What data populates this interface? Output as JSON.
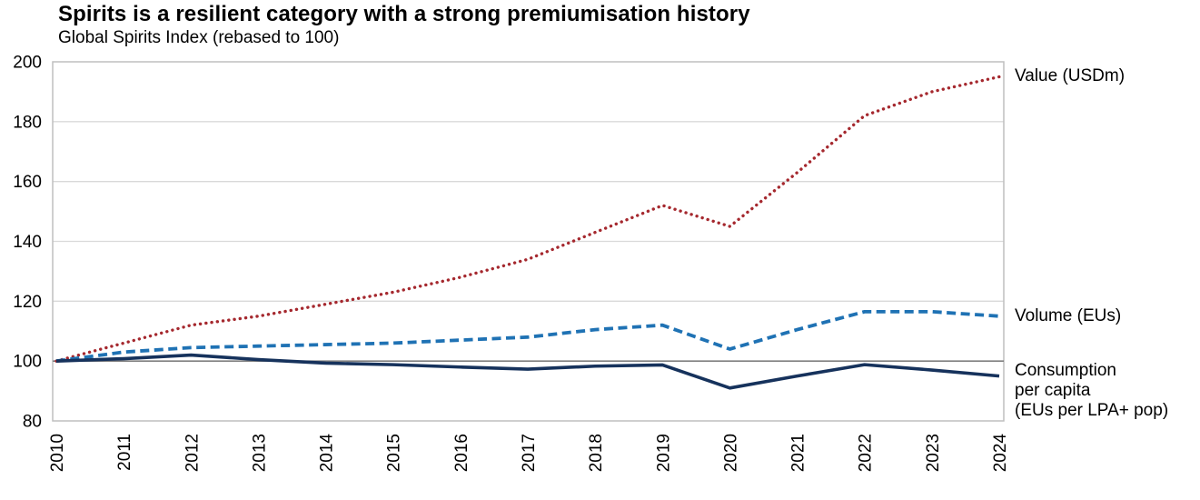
{
  "header": {
    "title": "Spirits is a resilient category with a strong premiumisation history",
    "subtitle": "Global Spirits Index (rebased to 100)"
  },
  "chart_data": {
    "type": "line",
    "title": "Spirits is a resilient category with a strong premiumisation history",
    "subtitle": "Global Spirits Index (rebased to 100)",
    "x": [
      "2010",
      "2011",
      "2012",
      "2013",
      "2014",
      "2015",
      "2016",
      "2017",
      "2018",
      "2019",
      "2020",
      "2021",
      "2022",
      "2023",
      "2024"
    ],
    "ylim": [
      80,
      200
    ],
    "yticks": [
      80,
      100,
      120,
      140,
      160,
      180,
      200
    ],
    "baseline": 100,
    "grid": true,
    "legend_position": "right of line ends",
    "axis_colors": {
      "gridline": "#D9D9D9",
      "border": "#BFBFBF",
      "baseline": "#7F7F7F",
      "text": "#000000"
    },
    "series": [
      {
        "name": "Value (USDm)",
        "label_lines": [
          "Value (USDm)"
        ],
        "style": "dotted",
        "color": "#A5282E",
        "values": [
          100,
          106,
          112,
          115,
          119,
          123,
          128,
          134,
          143,
          152,
          145,
          163,
          182,
          190,
          195
        ]
      },
      {
        "name": "Volume (EUs)",
        "label_lines": [
          "Volume (EUs)"
        ],
        "style": "dashed",
        "color": "#1F72B4",
        "values": [
          100,
          103,
          104.5,
          105,
          105.5,
          106,
          107,
          108,
          110.5,
          112,
          104,
          110.5,
          116.5,
          116.5,
          115
        ]
      },
      {
        "name": "Consumption per capita (EUs per LPA+ pop)",
        "label_lines": [
          "Consumption",
          "per capita",
          "(EUs per LPA+ pop)"
        ],
        "style": "solid",
        "color": "#16325C",
        "values": [
          100,
          100.8,
          102,
          100.5,
          99.3,
          98.8,
          98,
          97.3,
          98.3,
          98.7,
          91,
          95,
          98.8,
          97,
          95
        ]
      }
    ]
  }
}
